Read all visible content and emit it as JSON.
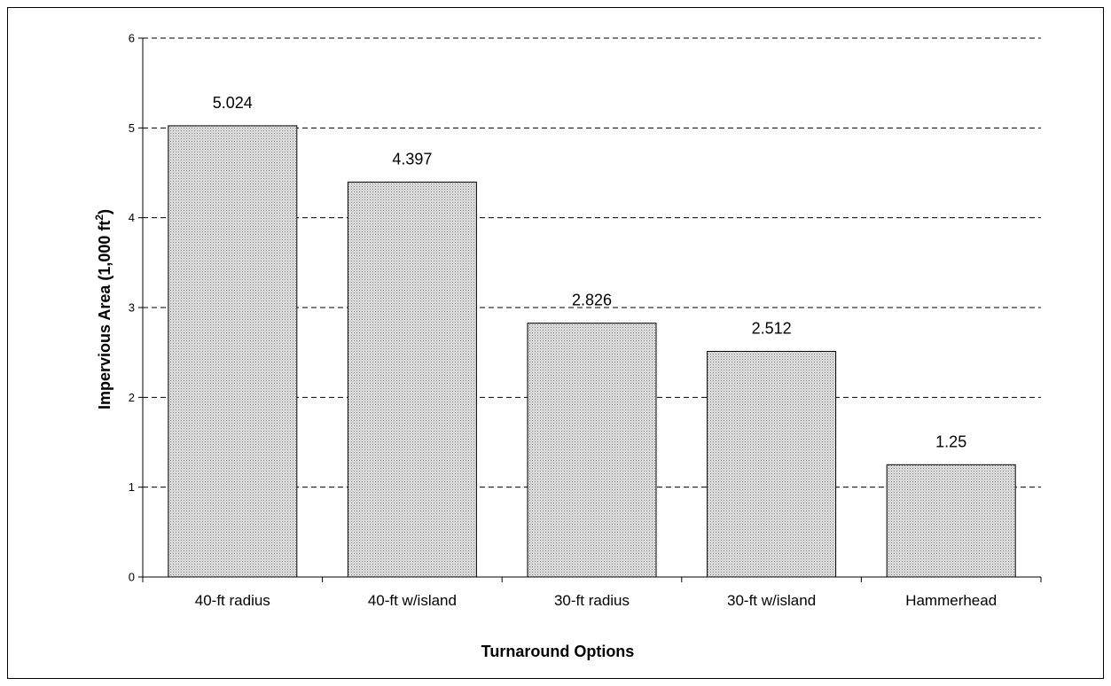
{
  "chart_data": {
    "type": "bar",
    "title": "",
    "categories": [
      "40-ft radius",
      "40-ft w/island",
      "30-ft radius",
      "30-ft w/island",
      "Hammerhead"
    ],
    "values": [
      5.024,
      4.397,
      2.826,
      2.512,
      1.25
    ],
    "data_labels": [
      "5.024",
      "4.397",
      "2.826",
      "2.512",
      "1.25"
    ],
    "xlabel": "Turnaround Options",
    "ylabel_main": "Impervious Area (1,000 ft",
    "ylabel_sup": "2",
    "ylabel_end": ")",
    "ylim": [
      0,
      6
    ],
    "yticks": [
      0,
      1,
      2,
      3,
      4,
      5,
      6
    ],
    "grid": true,
    "grid_style": "dashed",
    "legend": "none",
    "bar_fill": "#d6d6d6",
    "bar_stroke": "#000000"
  }
}
